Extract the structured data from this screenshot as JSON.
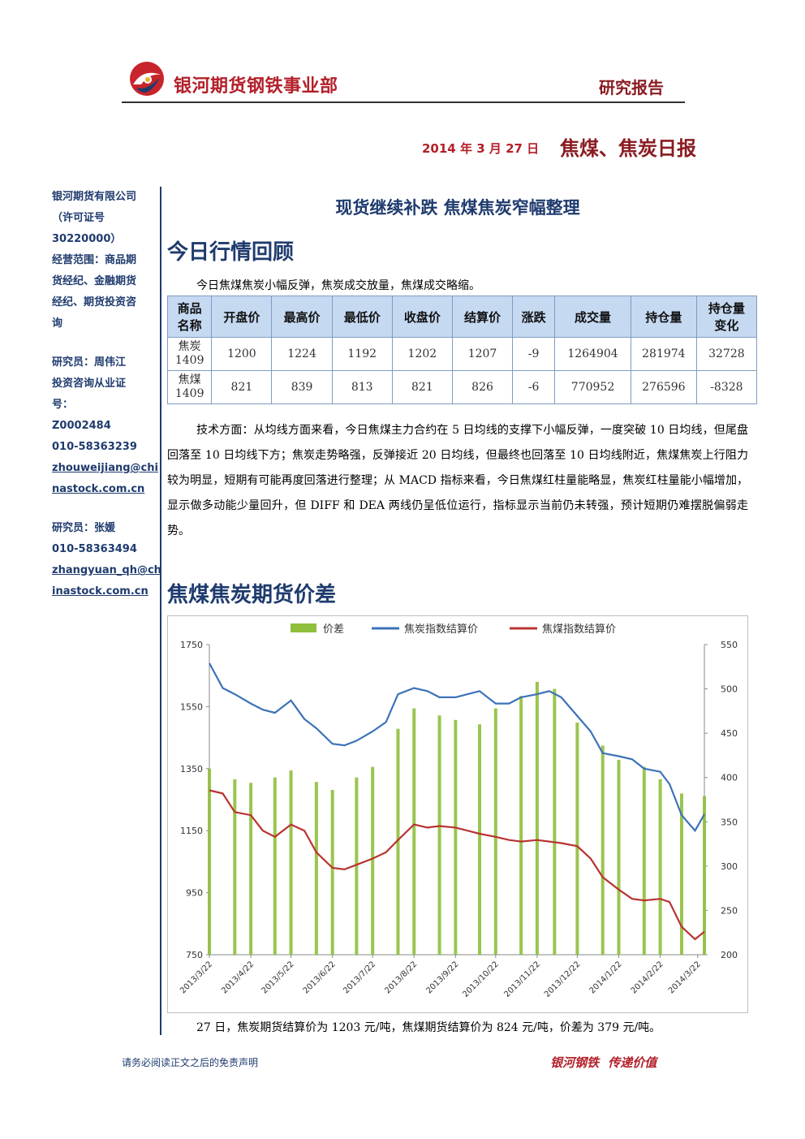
{
  "header": {
    "company": "银河期货钢铁事业部",
    "report_type": "研究报告",
    "date": "2014 年 3 月 27 日",
    "report_name": "焦煤、焦炭日报",
    "brand_color": "#b3202a"
  },
  "sidebar": {
    "company_lines": [
      "银河期货有限公司",
      "（许可证号",
      "30220000）",
      "经营范围：商品期",
      "货经纪、金融期货",
      "经纪、期货投资咨",
      "询"
    ],
    "analyst1_lines": [
      "研究员：周伟江",
      "投资咨询从业证",
      "号："
    ],
    "analyst1_id": "Z0002484",
    "analyst1_phone": "010-58363239",
    "analyst1_email_lines": [
      "zhouweijiang@chi",
      "nastock.com.cn"
    ],
    "analyst2_name": "研究员：张媛",
    "analyst2_phone": "010-58363494",
    "analyst2_email_lines": [
      "zhangyuan_qh@ch",
      "inastock.com.cn"
    ]
  },
  "main": {
    "headline": "现货继续补跌 焦煤焦炭窄幅整理",
    "section1_title": "今日行情回顾",
    "intro": "今日焦煤焦炭小幅反弹，焦炭成交放量，焦煤成交略缩。",
    "table": {
      "headers": [
        "商品\n名称",
        "开盘价",
        "最高价",
        "最低价",
        "收盘价",
        "结算价",
        "涨跌",
        "成交量",
        "持仓量",
        "持仓量\n变化"
      ],
      "rows": [
        [
          "焦炭\n1409",
          "1200",
          "1224",
          "1192",
          "1202",
          "1207",
          "-9",
          "1264904",
          "281974",
          "32728"
        ],
        [
          "焦煤\n1409",
          "821",
          "839",
          "813",
          "821",
          "826",
          "-6",
          "770952",
          "276596",
          "-8328"
        ]
      ]
    },
    "analysis": "技术方面：从均线方面来看，今日焦煤主力合约在 5 日均线的支撑下小幅反弹，一度突破 10 日均线，但尾盘回落至 10 日均线下方；焦炭走势略强，反弹接近 20 日均线，但最终也回落至 10 日均线附近，焦煤焦炭上行阻力较为明显，短期有可能再度回落进行整理；从 MACD 指标来看，今日焦煤红柱量能略显，焦炭红柱量能小幅增加，显示做多动能少量回升，但 DIFF 和 DEA 两线仍呈低位运行，指标显示当前仍未转强，预计短期仍难摆脱偏弱走势。",
    "section2_title": "焦煤焦炭期货价差",
    "summary": "27 日，焦炭期货结算价为 1203 元/吨，焦煤期货结算价为 824 元/吨，价差为 379 元/吨。"
  },
  "chart_data": {
    "type": "line",
    "x_start": "2013/3/22",
    "x_end": "2014/3/27",
    "x_tick_labels": [
      "2013/3/22",
      "2013/4/22",
      "2013/5/22",
      "2013/6/22",
      "2013/7/22",
      "2013/8/22",
      "2013/9/22",
      "2013/10/22",
      "2013/11/22",
      "2013/12/22",
      "2014/1/22",
      "2014/2/22",
      "2014/3/22"
    ],
    "left_axis": {
      "ylim": [
        750,
        1750
      ],
      "ticks": [
        "750",
        "950",
        "1150",
        "1350",
        "1550",
        "1750"
      ]
    },
    "right_axis": {
      "ylim": [
        200,
        550
      ],
      "ticks": [
        "200",
        "250",
        "300",
        "350",
        "400",
        "450",
        "500",
        "550"
      ]
    },
    "series": [
      {
        "name": "价差",
        "type": "bar",
        "axis": "right",
        "color": "#8fbf3c",
        "x": [
          "2013/3/22",
          "2013/4/10",
          "2013/4/22",
          "2013/5/10",
          "2013/5/22",
          "2013/6/10",
          "2013/6/22",
          "2013/7/10",
          "2013/7/22",
          "2013/8/10",
          "2013/8/22",
          "2013/9/10",
          "2013/9/22",
          "2013/10/10",
          "2013/10/22",
          "2013/11/10",
          "2013/11/22",
          "2013/12/5",
          "2013/12/22",
          "2014/1/10",
          "2014/1/22",
          "2014/2/10",
          "2014/2/22",
          "2014/3/10",
          "2014/3/27"
        ],
        "values": [
          410,
          398,
          394,
          400,
          408,
          395,
          386,
          400,
          412,
          455,
          478,
          470,
          465,
          460,
          478,
          492,
          508,
          500,
          462,
          436,
          420,
          412,
          398,
          382,
          379
        ]
      },
      {
        "name": "焦炭指数结算价",
        "type": "line",
        "axis": "left",
        "color": "#3d72b8",
        "x": [
          "2013/3/22",
          "2013/4/1",
          "2013/4/10",
          "2013/4/22",
          "2013/5/1",
          "2013/5/10",
          "2013/5/22",
          "2013/6/1",
          "2013/6/10",
          "2013/6/22",
          "2013/7/1",
          "2013/7/10",
          "2013/7/22",
          "2013/8/1",
          "2013/8/10",
          "2013/8/22",
          "2013/9/1",
          "2013/9/10",
          "2013/9/22",
          "2013/10/1",
          "2013/10/10",
          "2013/10/22",
          "2013/11/1",
          "2013/11/10",
          "2013/11/22",
          "2013/12/1",
          "2013/12/10",
          "2013/12/22",
          "2014/1/1",
          "2014/1/10",
          "2014/1/22",
          "2014/2/1",
          "2014/2/10",
          "2014/2/22",
          "2014/3/1",
          "2014/3/10",
          "2014/3/20",
          "2014/3/27"
        ],
        "values": [
          1690,
          1610,
          1590,
          1560,
          1540,
          1530,
          1570,
          1510,
          1480,
          1430,
          1425,
          1440,
          1470,
          1500,
          1590,
          1610,
          1600,
          1580,
          1580,
          1590,
          1600,
          1560,
          1560,
          1580,
          1590,
          1600,
          1580,
          1520,
          1470,
          1400,
          1390,
          1380,
          1350,
          1340,
          1300,
          1200,
          1150,
          1203
        ]
      },
      {
        "name": "焦煤指数结算价",
        "type": "line",
        "axis": "left",
        "color": "#b83430",
        "x": [
          "2013/3/22",
          "2013/4/1",
          "2013/4/10",
          "2013/4/22",
          "2013/5/1",
          "2013/5/10",
          "2013/5/22",
          "2013/6/1",
          "2013/6/10",
          "2013/6/22",
          "2013/7/1",
          "2013/7/10",
          "2013/7/22",
          "2013/8/1",
          "2013/8/10",
          "2013/8/22",
          "2013/9/1",
          "2013/9/10",
          "2013/9/22",
          "2013/10/1",
          "2013/10/10",
          "2013/10/22",
          "2013/11/1",
          "2013/11/10",
          "2013/11/22",
          "2013/12/1",
          "2013/12/10",
          "2013/12/22",
          "2014/1/1",
          "2014/1/10",
          "2014/1/22",
          "2014/2/1",
          "2014/2/10",
          "2014/2/22",
          "2014/3/1",
          "2014/3/10",
          "2014/3/20",
          "2014/3/27"
        ],
        "values": [
          1280,
          1270,
          1210,
          1200,
          1150,
          1130,
          1170,
          1150,
          1080,
          1030,
          1025,
          1040,
          1060,
          1080,
          1120,
          1170,
          1160,
          1165,
          1160,
          1150,
          1140,
          1130,
          1120,
          1115,
          1120,
          1115,
          1110,
          1100,
          1060,
          1000,
          960,
          930,
          925,
          930,
          920,
          840,
          800,
          824
        ]
      }
    ],
    "legend": "top"
  }
}
